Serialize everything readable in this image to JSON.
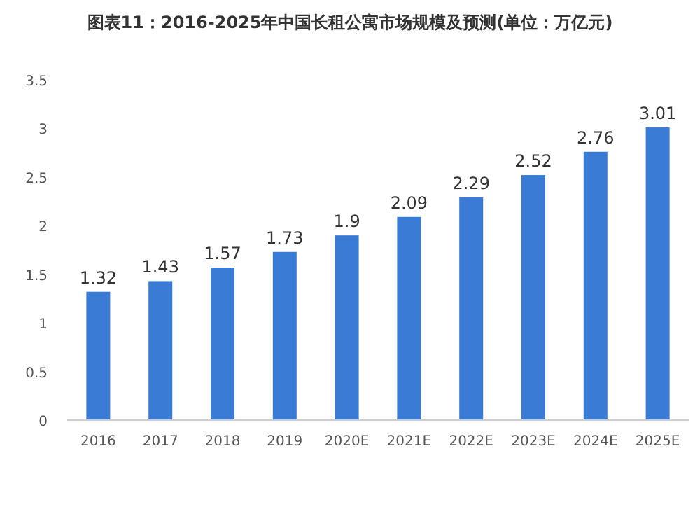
{
  "chart_data": {
    "type": "bar",
    "title": "图表11：2016-2025年中国长租公寓市场规模及预测(单位：万亿元)",
    "categories": [
      "2016",
      "2017",
      "2018",
      "2019",
      "2020E",
      "2021E",
      "2022E",
      "2023E",
      "2024E",
      "2025E"
    ],
    "values": [
      1.32,
      1.43,
      1.57,
      1.73,
      1.9,
      2.09,
      2.29,
      2.52,
      2.76,
      3.01
    ],
    "color": "#3a7bd5",
    "ylim": [
      0,
      3.5
    ],
    "yticks": [
      0,
      0.5,
      1,
      1.5,
      2,
      2.5,
      3,
      3.5
    ],
    "grid": false,
    "data_labels": true
  }
}
